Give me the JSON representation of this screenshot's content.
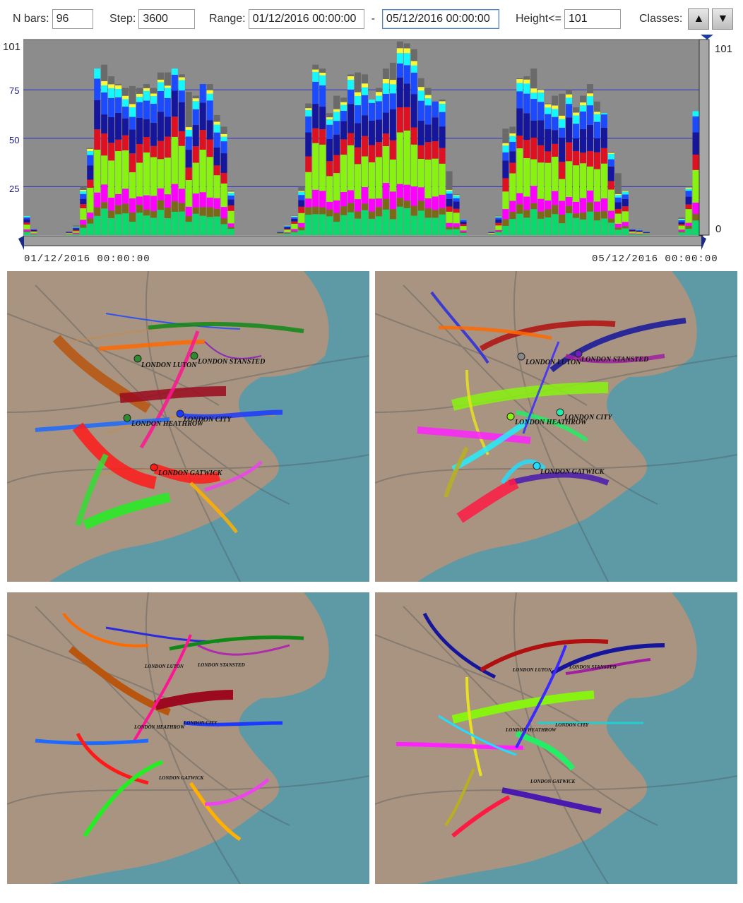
{
  "controls": {
    "nbars_label": "N bars:",
    "nbars_value": "96",
    "step_label": "Step:",
    "step_value": "3600",
    "range_label": "Range:",
    "range_from": "01/12/2016 00:00:00",
    "range_sep": "-",
    "range_to": "05/12/2016 00:00:00",
    "height_label": "Height<=",
    "height_value": "101",
    "classes_label": "Classes:",
    "up_icon": "arrow-up-icon",
    "down_icon": "arrow-down-icon"
  },
  "chart": {
    "start_label": "01/12/2016 00:00:00",
    "end_label": "05/12/2016 00:00:00",
    "top_left_label": "101",
    "top_right_label": "101",
    "bottom_right_label": "0"
  },
  "chart_data": {
    "type": "bar",
    "stacked": true,
    "n_bars": 96,
    "ylim": [
      0,
      101
    ],
    "yticks": [
      25,
      50,
      75,
      101
    ],
    "xlabel_start": "01/12/2016 00:00:00",
    "xlabel_end": "05/12/2016 00:00:00",
    "grid": true,
    "totals": [
      10,
      3,
      0,
      0,
      0,
      0,
      2,
      5,
      25,
      45,
      86,
      88,
      82,
      78,
      76,
      77,
      76,
      78,
      76,
      84,
      84,
      86,
      83,
      74,
      72,
      78,
      78,
      62,
      56,
      23,
      0,
      0,
      0,
      0,
      0,
      0,
      2,
      5,
      10,
      25,
      68,
      88,
      86,
      63,
      72,
      71,
      83,
      84,
      83,
      70,
      76,
      86,
      89,
      100,
      99,
      96,
      81,
      76,
      69,
      70,
      33,
      21,
      8,
      0,
      0,
      0,
      2,
      10,
      55,
      56,
      81,
      82,
      86,
      75,
      68,
      72,
      73,
      75,
      66,
      72,
      78,
      69,
      63,
      43,
      32,
      23,
      3,
      3,
      2,
      0,
      0,
      0,
      0,
      9,
      25,
      64
    ],
    "class_colors": [
      "#0cd96b",
      "#7a6a18",
      "#ff00ff",
      "#88f211",
      "#dd1122",
      "#15169b",
      "#1c4aff",
      "#15f7ff",
      "#f9f93a",
      "#6a6a6a"
    ]
  },
  "maps": {
    "panel1": {
      "labels": [
        "LONDON LUTON",
        "LONDON STANSTED",
        "LONDON HEATHROW",
        "LONDON CITY",
        "LONDON GATWICK"
      ]
    },
    "panel2": {
      "labels": [
        "LONDON LUTON",
        "LONDON STANSTED",
        "LONDON HEATHROW",
        "LONDON CITY",
        "LONDON GATWICK"
      ]
    },
    "panel3": {
      "labels": [
        "LONDON LUTON",
        "LONDON STANSTED",
        "LONDON HEATHROW",
        "LONDON CITY",
        "LONDON GATWICK"
      ]
    },
    "panel4": {
      "labels": [
        "LONDON LUTON",
        "LONDON STANSTED",
        "LONDON HEATHROW",
        "LONDON CITY",
        "LONDON GATWICK"
      ]
    }
  }
}
